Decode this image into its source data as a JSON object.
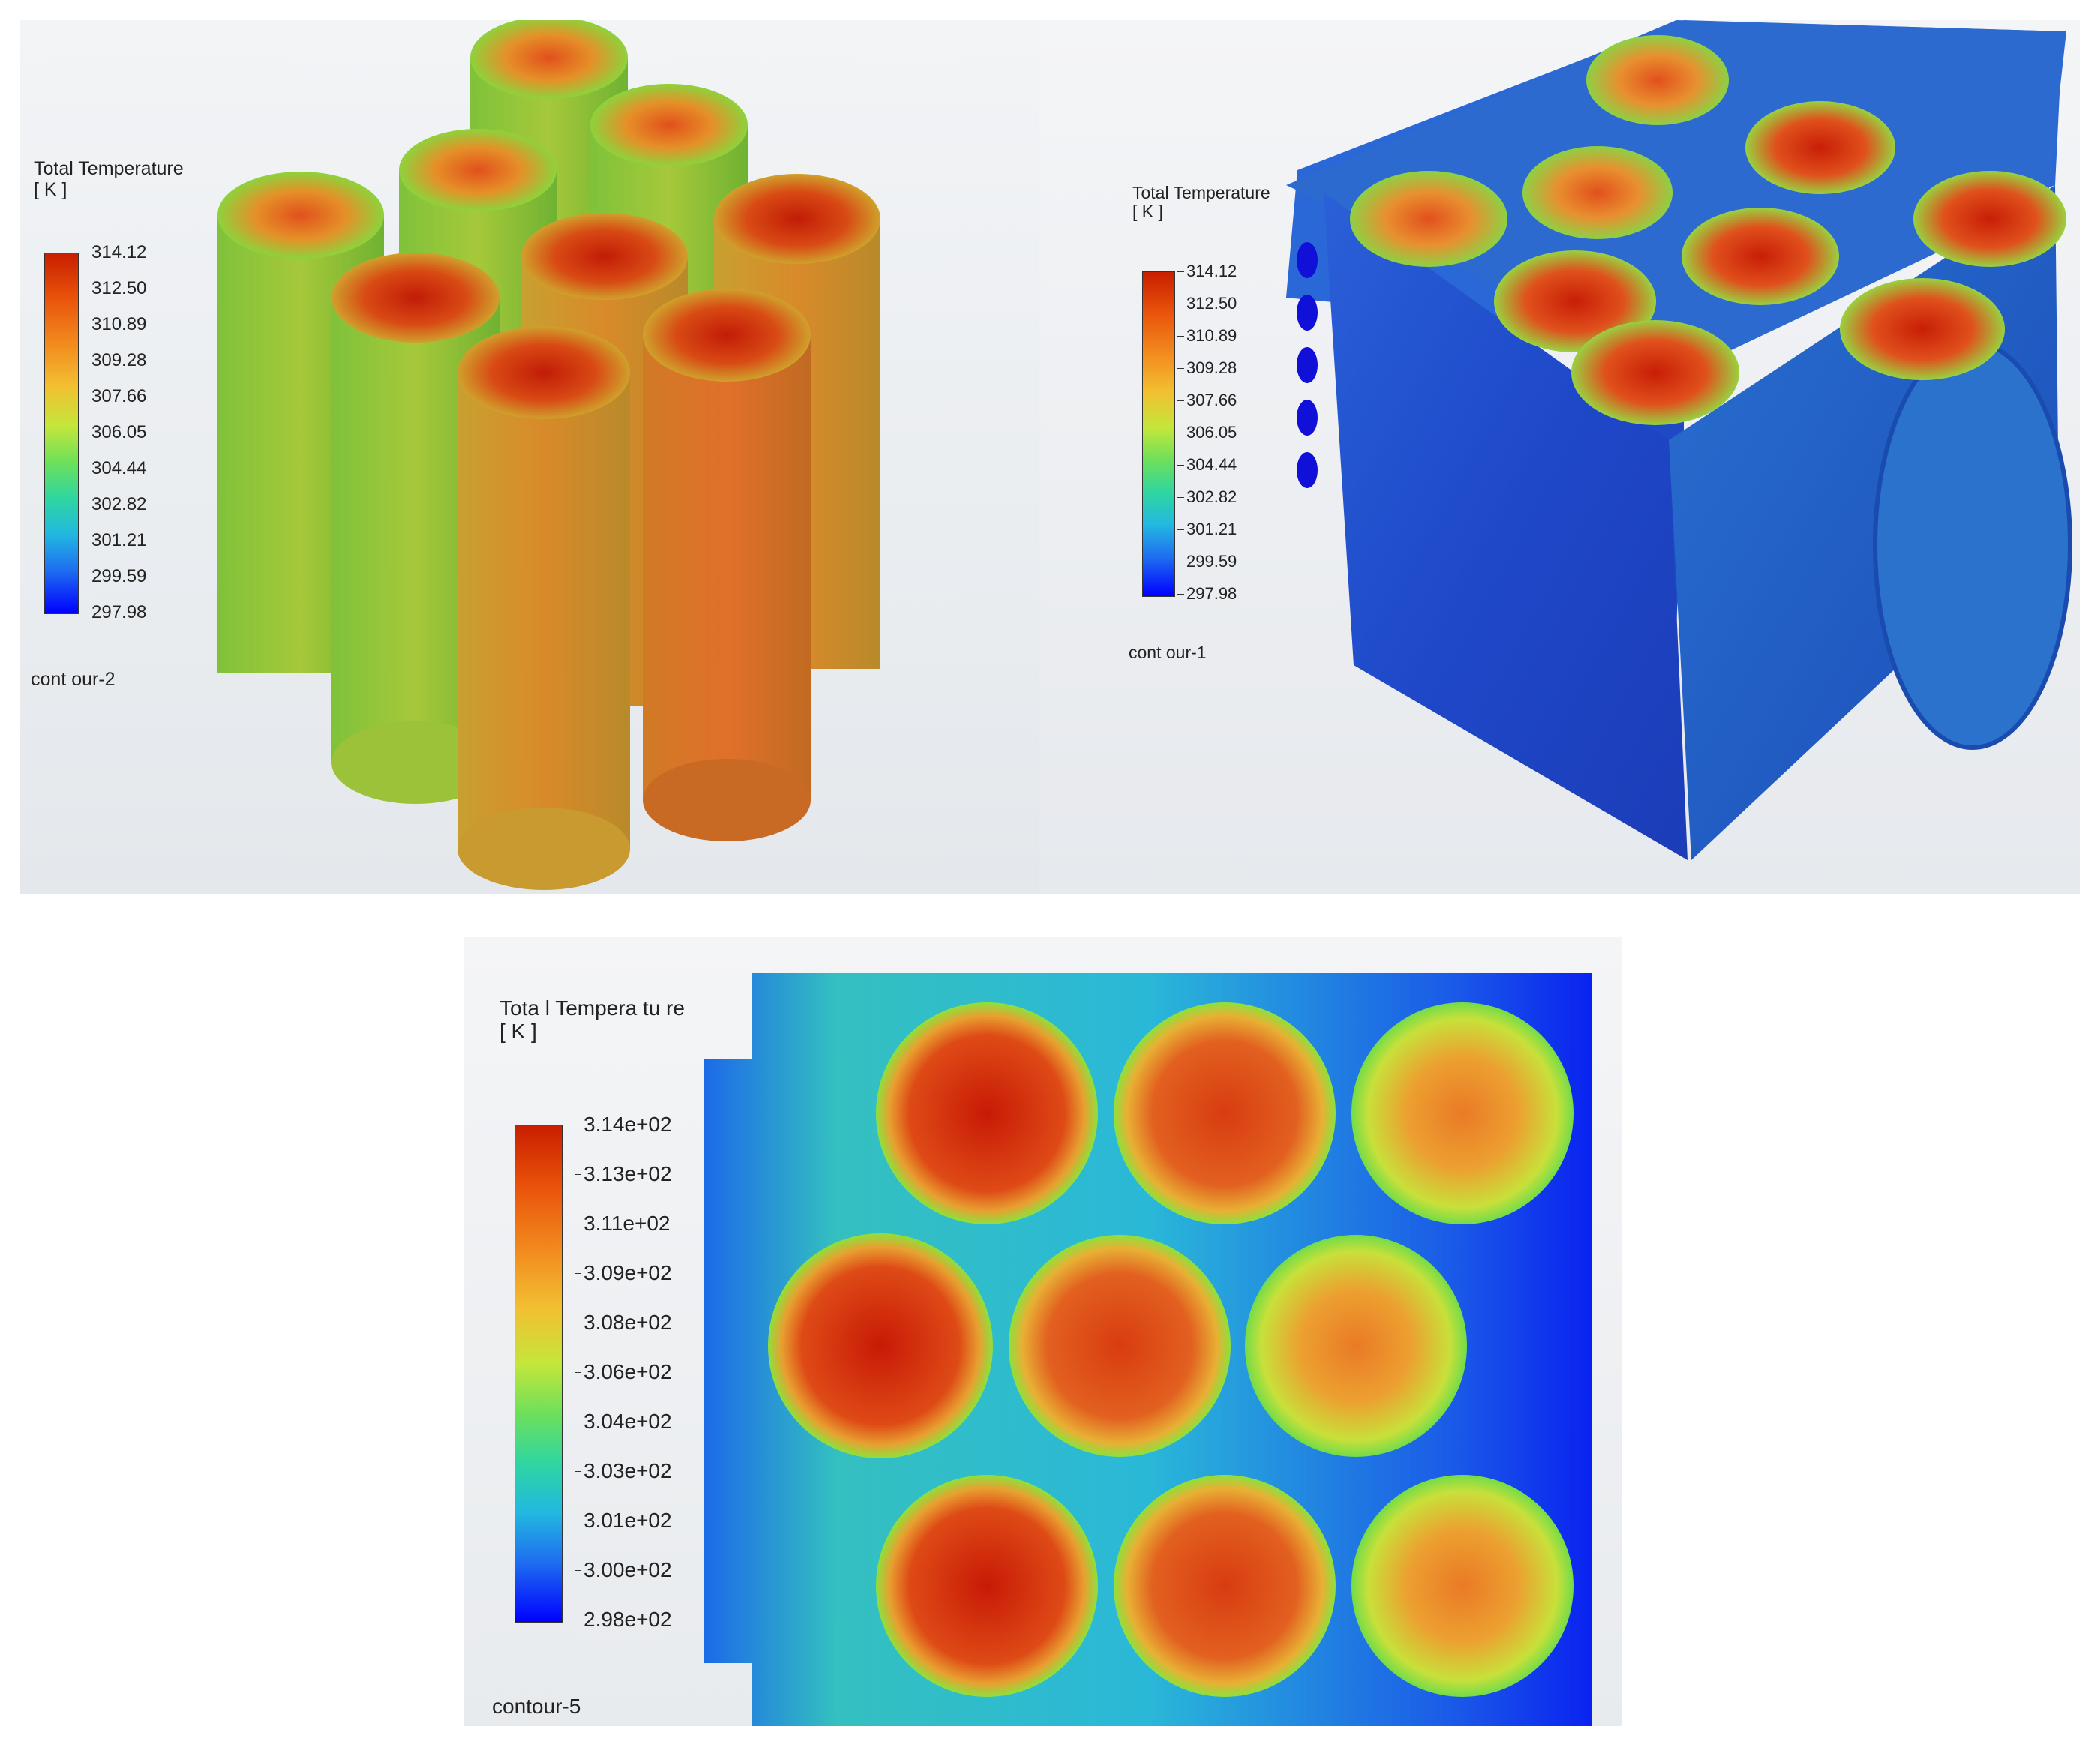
{
  "panels": {
    "contour2": {
      "legend_title": "Total Temperature\n[ K ]",
      "ticks": [
        "314.12",
        "312.50",
        "310.89",
        "309.28",
        "307.66",
        "306.05",
        "304.44",
        "302.82",
        "301.21",
        "299.59",
        "297.98"
      ],
      "contour_name": "cont our-2"
    },
    "contour1": {
      "legend_title": "Total Temperature\n[ K ]",
      "ticks": [
        "314.12",
        "312.50",
        "310.89",
        "309.28",
        "307.66",
        "306.05",
        "304.44",
        "302.82",
        "301.21",
        "299.59",
        "297.98"
      ],
      "contour_name": "cont our-1"
    },
    "contour5": {
      "legend_title": "Tota l Tempera tu re\n[ K ]",
      "ticks": [
        "3.14e+02",
        "3.13e+02",
        "3.11e+02",
        "3.09e+02",
        "3.08e+02",
        "3.06e+02",
        "3.04e+02",
        "3.03e+02",
        "3.01e+02",
        "3.00e+02",
        "2.98e+02"
      ],
      "contour_name": "contour-5"
    }
  },
  "colors": {
    "hot": "#c81e00",
    "warm": "#e8510a",
    "mid": "#c4e63a",
    "cool": "#22b8e0",
    "cold": "#0000ff"
  }
}
